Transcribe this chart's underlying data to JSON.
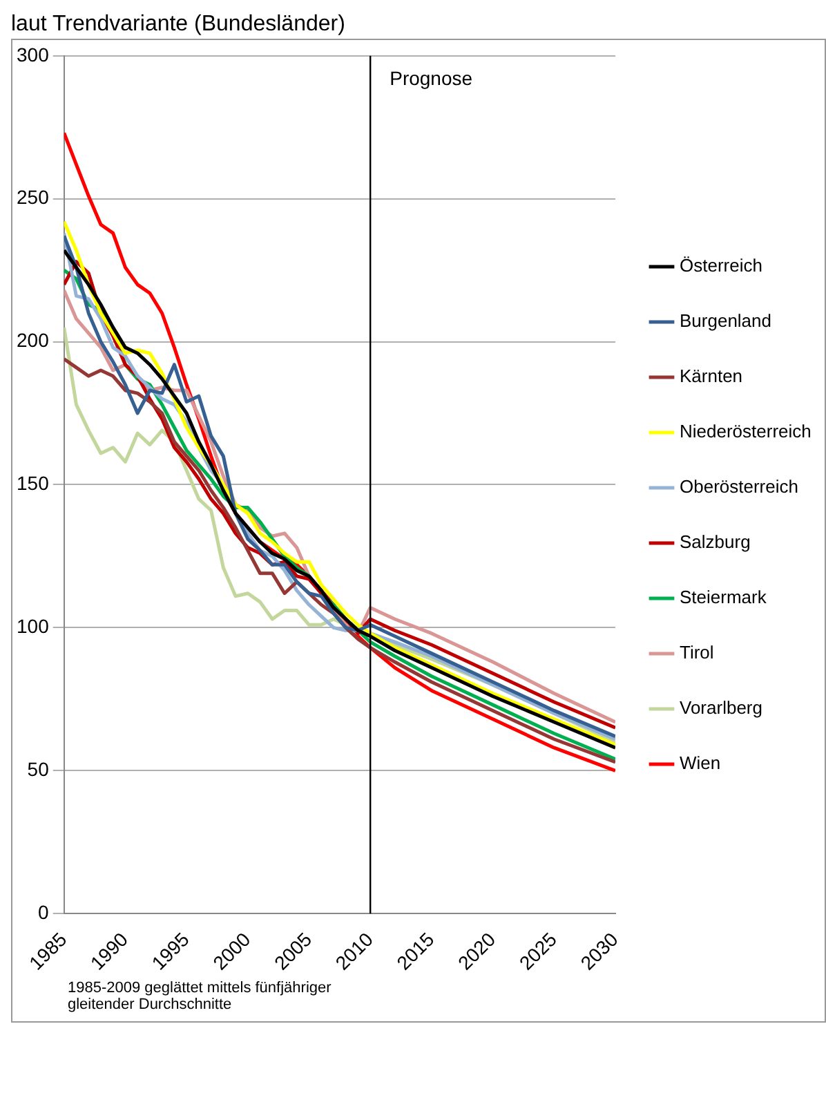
{
  "chart_data": {
    "type": "line",
    "title": "laut Trendvariante (Bundesländer)",
    "x": [
      1985,
      1986,
      1987,
      1988,
      1989,
      1990,
      1991,
      1992,
      1993,
      1994,
      1995,
      1996,
      1997,
      1998,
      1999,
      2000,
      2001,
      2002,
      2003,
      2004,
      2005,
      2006,
      2007,
      2008,
      2009,
      2010,
      2012,
      2015,
      2020,
      2025,
      2030
    ],
    "series": [
      {
        "name": "Österreich",
        "color": "#000000",
        "values": [
          232,
          226,
          220,
          213,
          205,
          198,
          196,
          192,
          187,
          181,
          175,
          165,
          157,
          148,
          140,
          135,
          130,
          126,
          124,
          120,
          118,
          113,
          107,
          103,
          99,
          97,
          92,
          86,
          76,
          67,
          58
        ]
      },
      {
        "name": "Burgenland",
        "color": "#376092",
        "values": [
          237,
          226,
          210,
          200,
          193,
          185,
          175,
          183,
          182,
          192,
          179,
          181,
          167,
          160,
          140,
          131,
          127,
          122,
          122,
          116,
          112,
          111,
          105,
          100,
          99,
          101,
          97,
          91,
          81,
          71,
          62
        ]
      },
      {
        "name": "Kärnten",
        "color": "#953735",
        "values": [
          194,
          191,
          188,
          190,
          188,
          183,
          182,
          179,
          175,
          165,
          160,
          155,
          148,
          142,
          135,
          127,
          119,
          119,
          112,
          116,
          112,
          108,
          105,
          100,
          96,
          93,
          88,
          81,
          71,
          61,
          53
        ]
      },
      {
        "name": "Niederösterreich",
        "color": "#ffff00",
        "values": [
          242,
          232,
          220,
          210,
          203,
          196,
          197,
          196,
          189,
          180,
          170,
          163,
          157,
          150,
          143,
          140,
          133,
          130,
          126,
          123,
          123,
          115,
          110,
          105,
          101,
          98,
          93,
          87,
          77,
          68,
          59
        ]
      },
      {
        "name": "Oberösterreich",
        "color": "#95b3d7",
        "values": [
          238,
          216,
          215,
          208,
          198,
          195,
          188,
          184,
          180,
          178,
          172,
          163,
          155,
          150,
          140,
          133,
          127,
          125,
          120,
          113,
          108,
          104,
          100,
          99,
          99,
          98,
          95,
          90,
          80,
          70,
          61
        ]
      },
      {
        "name": "Salzburg",
        "color": "#c00000",
        "values": [
          220,
          228,
          224,
          210,
          202,
          192,
          188,
          180,
          173,
          163,
          158,
          152,
          145,
          140,
          133,
          128,
          126,
          122,
          123,
          118,
          117,
          112,
          107,
          103,
          98,
          103,
          99,
          94,
          84,
          74,
          65
        ]
      },
      {
        "name": "Steiermark",
        "color": "#00b050",
        "values": [
          225,
          222,
          213,
          211,
          205,
          192,
          187,
          185,
          178,
          170,
          162,
          157,
          152,
          146,
          142,
          142,
          137,
          131,
          125,
          121,
          118,
          112,
          108,
          103,
          99,
          95,
          90,
          83,
          73,
          63,
          54
        ]
      },
      {
        "name": "Tirol",
        "color": "#da9694",
        "values": [
          218,
          208,
          203,
          198,
          190,
          192,
          187,
          183,
          184,
          183,
          183,
          174,
          165,
          153,
          143,
          141,
          135,
          132,
          133,
          128,
          118,
          112,
          106,
          101,
          98,
          107,
          103,
          98,
          88,
          77,
          67
        ]
      },
      {
        "name": "Vorarlberg",
        "color": "#c3d69b",
        "values": [
          205,
          178,
          169,
          161,
          163,
          158,
          168,
          164,
          169,
          165,
          155,
          145,
          141,
          121,
          111,
          112,
          109,
          103,
          106,
          106,
          101,
          101,
          103,
          101,
          100,
          97,
          94,
          89,
          80,
          70,
          60
        ]
      },
      {
        "name": "Wien",
        "color": "#ff0000",
        "values": [
          273,
          262,
          251,
          241,
          238,
          226,
          220,
          217,
          210,
          198,
          185,
          173,
          160,
          148,
          140,
          135,
          130,
          127,
          124,
          122,
          118,
          113,
          108,
          102,
          97,
          93,
          86,
          78,
          68,
          58,
          50
        ]
      }
    ],
    "xlim": [
      1985,
      2030
    ],
    "xticks": [
      1985,
      1990,
      1995,
      2000,
      2005,
      2010,
      2015,
      2020,
      2025,
      2030
    ],
    "ylim": [
      0,
      300
    ],
    "yticks": [
      0,
      50,
      100,
      150,
      200,
      250,
      300
    ],
    "grid": "y",
    "legend": "right",
    "marker": "none",
    "line_style": "solid",
    "ref_lines": [
      {
        "axis": "x",
        "value": 2010,
        "label": "Prognose",
        "color": "#000000"
      }
    ],
    "annotations": [
      "1985-2009 geglättet mittels fünfjähriger gleitender Durchschnitte"
    ]
  }
}
